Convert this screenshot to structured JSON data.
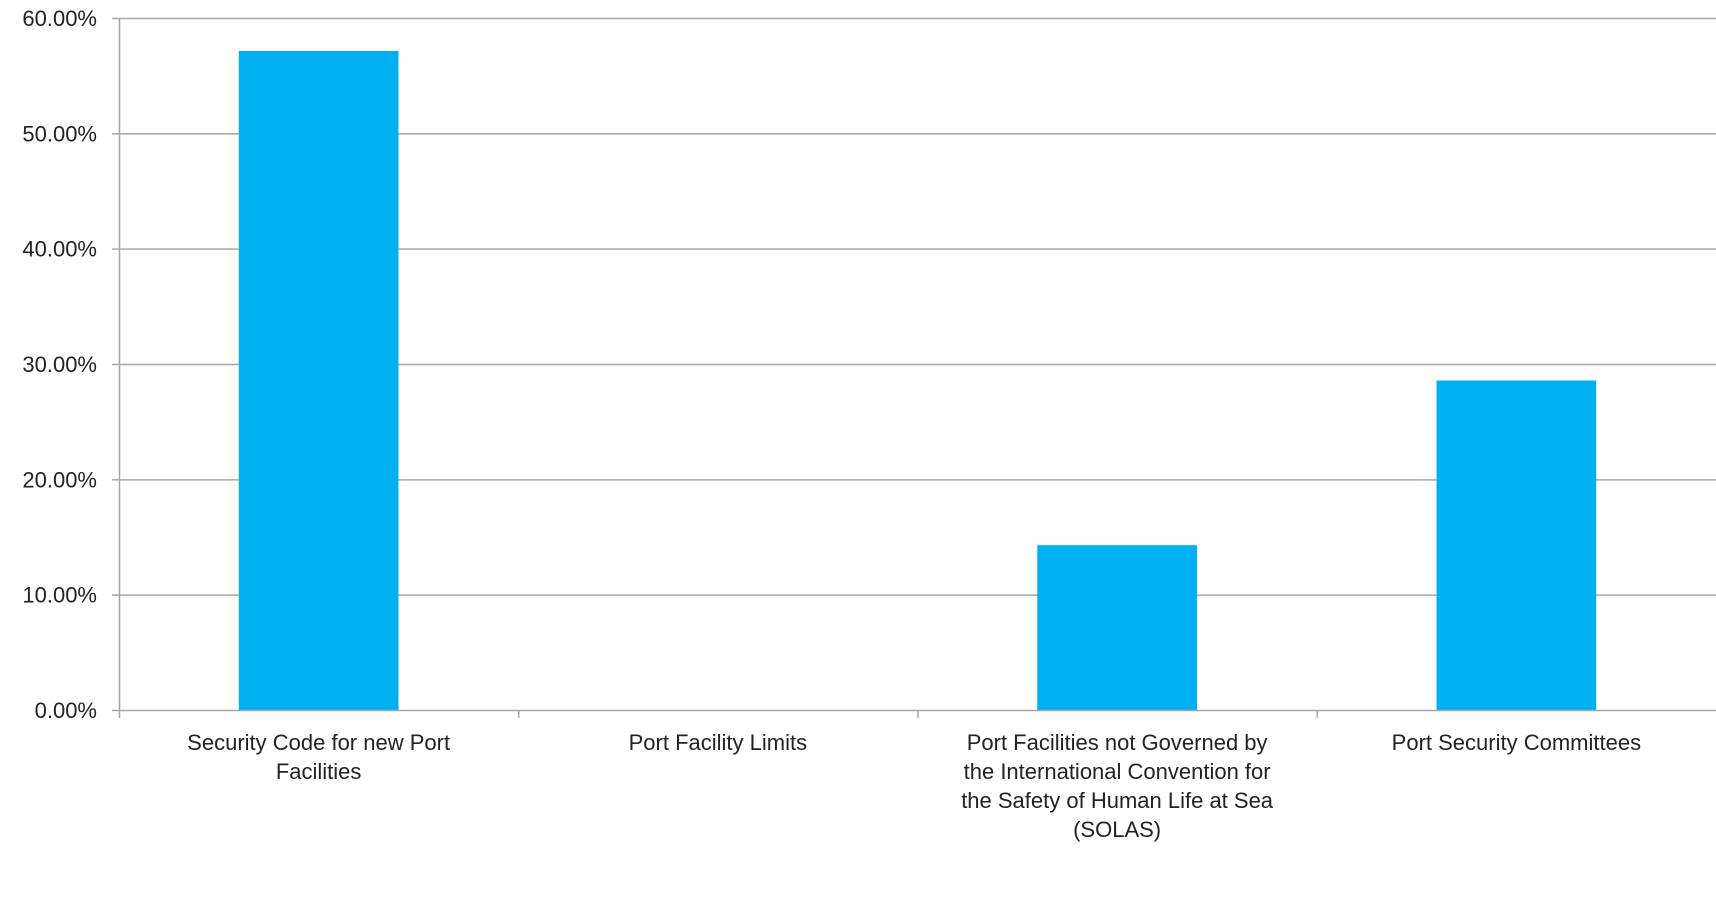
{
  "chart_data": {
    "type": "bar",
    "title": "",
    "xlabel": "",
    "ylabel": "",
    "categories": [
      "Security Code for new Port Facilities",
      "Port Facility Limits",
      "Port Facilities not Governed by the International Convention for the Safety of Human Life at Sea (SOLAS)",
      "Port Security Committees"
    ],
    "category_label_lines": [
      [
        "Security Code for new Port",
        "Facilities"
      ],
      [
        "Port Facility Limits"
      ],
      [
        "Port Facilities not Governed by",
        "the International Convention for",
        "the Safety of Human Life at Sea",
        "(SOLAS)"
      ],
      [
        "Port Security Committees"
      ]
    ],
    "values": [
      57.14,
      0,
      14.29,
      28.57
    ],
    "ylim": [
      0,
      60
    ],
    "yticks": [
      0,
      10,
      20,
      30,
      40,
      50,
      60
    ],
    "ytick_labels": [
      "0.00%",
      "10.00%",
      "20.00%",
      "30.00%",
      "40.00%",
      "50.00%",
      "60.00%"
    ],
    "grid": true,
    "legend": "none",
    "bar_color": "#00B0F0",
    "grid_color": "#A6A6A6"
  }
}
